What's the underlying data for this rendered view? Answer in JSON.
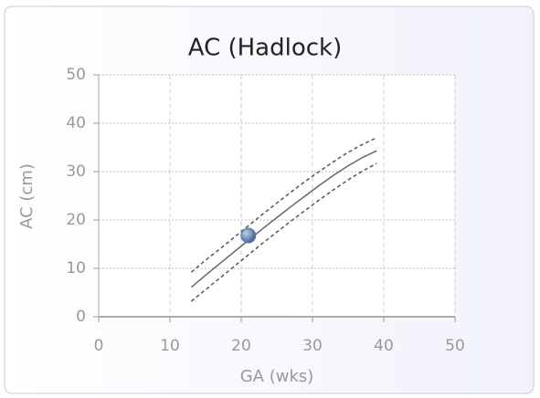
{
  "chart_data": {
    "type": "line",
    "title": "AC (Hadlock)",
    "xlabel": "GA (wks)",
    "ylabel": "AC (cm)",
    "x": [
      13,
      15,
      17,
      19,
      21,
      23,
      25,
      27,
      29,
      31,
      33,
      35,
      37,
      39
    ],
    "series": [
      {
        "color": "#555555",
        "dashed": true,
        "values": [
          9.2,
          11.7,
          14.0,
          16.4,
          18.8,
          21.2,
          23.5,
          25.8,
          28.0,
          30.1,
          32.1,
          34.0,
          35.6,
          37.0
        ]
      },
      {
        "color": "#666666",
        "dashed": false,
        "values": [
          6.1,
          8.6,
          11.0,
          13.4,
          15.8,
          18.2,
          20.5,
          22.8,
          25.0,
          27.2,
          29.3,
          31.2,
          32.9,
          34.3
        ]
      },
      {
        "color": "#555555",
        "dashed": true,
        "values": [
          3.2,
          5.6,
          8.0,
          10.4,
          12.8,
          15.2,
          17.5,
          19.8,
          22.0,
          24.2,
          26.3,
          28.3,
          30.1,
          31.7
        ]
      }
    ],
    "marker": {
      "x": 21,
      "y": 16.8,
      "color": "#4f79b0"
    },
    "xlim": [
      0,
      50
    ],
    "xticks": [
      0,
      10,
      20,
      30,
      40,
      50
    ],
    "ylim": [
      0,
      50
    ],
    "yticks": [
      0,
      10,
      20,
      30,
      40,
      50
    ],
    "grid": true
  }
}
